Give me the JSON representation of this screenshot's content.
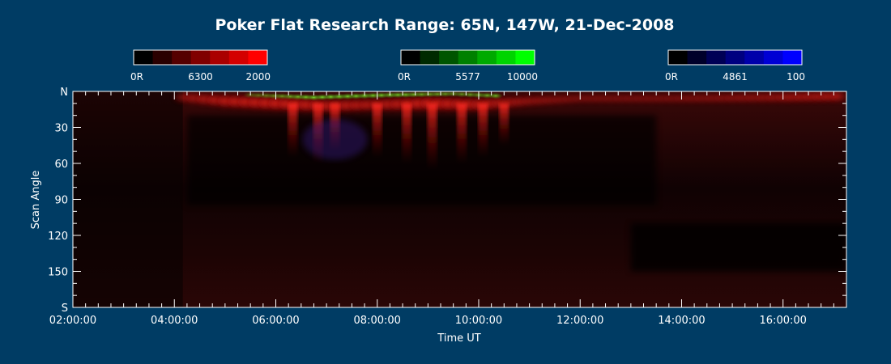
{
  "colors": {
    "background": "#003c64",
    "text": "#ffffff"
  },
  "chart_data": {
    "type": "heatmap",
    "title": "Poker Flat Research Range: 65N, 147W, 21-Dec-2008",
    "xlabel": "Time UT",
    "ylabel": "Scan Angle",
    "x_ticks": [
      "02:00:00",
      "04:00:00",
      "06:00:00",
      "08:00:00",
      "10:00:00",
      "12:00:00",
      "14:00:00",
      "16:00:00"
    ],
    "xlim": [
      "02:00:00",
      "17:15:00"
    ],
    "y_ticks": [
      "N",
      "30",
      "60",
      "90",
      "120",
      "150",
      "S"
    ],
    "y_tick_values": [
      0,
      30,
      60,
      90,
      120,
      150,
      180
    ],
    "ylim": [
      0,
      180
    ],
    "colorbars": [
      {
        "name": "6300",
        "min_label": "0R",
        "max_label": "2000",
        "colors": [
          "#000000",
          "#2a0000",
          "#550000",
          "#800000",
          "#aa0000",
          "#d40000",
          "#ff0000"
        ]
      },
      {
        "name": "5577",
        "min_label": "0R",
        "max_label": "10000",
        "colors": [
          "#000000",
          "#002a00",
          "#005500",
          "#008000",
          "#00aa00",
          "#00d400",
          "#00ff00"
        ]
      },
      {
        "name": "4861",
        "min_label": "0R",
        "max_label": "100",
        "colors": [
          "#000000",
          "#00002a",
          "#000055",
          "#000080",
          "#0000aa",
          "#0000d4",
          "#0000ff"
        ]
      }
    ],
    "grid": false,
    "aurora_red_band": [
      {
        "t": "04:10",
        "angle": 5,
        "intensity": 0.5
      },
      {
        "t": "05:00",
        "angle": 8,
        "intensity": 0.8
      },
      {
        "t": "06:00",
        "angle": 10,
        "intensity": 0.9
      },
      {
        "t": "07:00",
        "angle": 12,
        "intensity": 0.8
      },
      {
        "t": "08:00",
        "angle": 11,
        "intensity": 0.7
      },
      {
        "t": "09:00",
        "angle": 10,
        "intensity": 0.9
      },
      {
        "t": "10:00",
        "angle": 11,
        "intensity": 0.8
      },
      {
        "t": "11:00",
        "angle": 8,
        "intensity": 0.5
      },
      {
        "t": "12:00",
        "angle": 6,
        "intensity": 0.35
      },
      {
        "t": "14:00",
        "angle": 6,
        "intensity": 0.35
      },
      {
        "t": "16:00",
        "angle": 5,
        "intensity": 0.5
      },
      {
        "t": "17:15",
        "angle": 4,
        "intensity": 0.6
      }
    ],
    "aurora_green_band": [
      {
        "t": "05:30",
        "angle": 3,
        "intensity": 0.4
      },
      {
        "t": "06:45",
        "angle": 5,
        "intensity": 0.9
      },
      {
        "t": "08:15",
        "angle": 3,
        "intensity": 0.85
      },
      {
        "t": "09:30",
        "angle": 2,
        "intensity": 0.6
      },
      {
        "t": "10:30",
        "angle": 4,
        "intensity": 0.8
      }
    ]
  }
}
